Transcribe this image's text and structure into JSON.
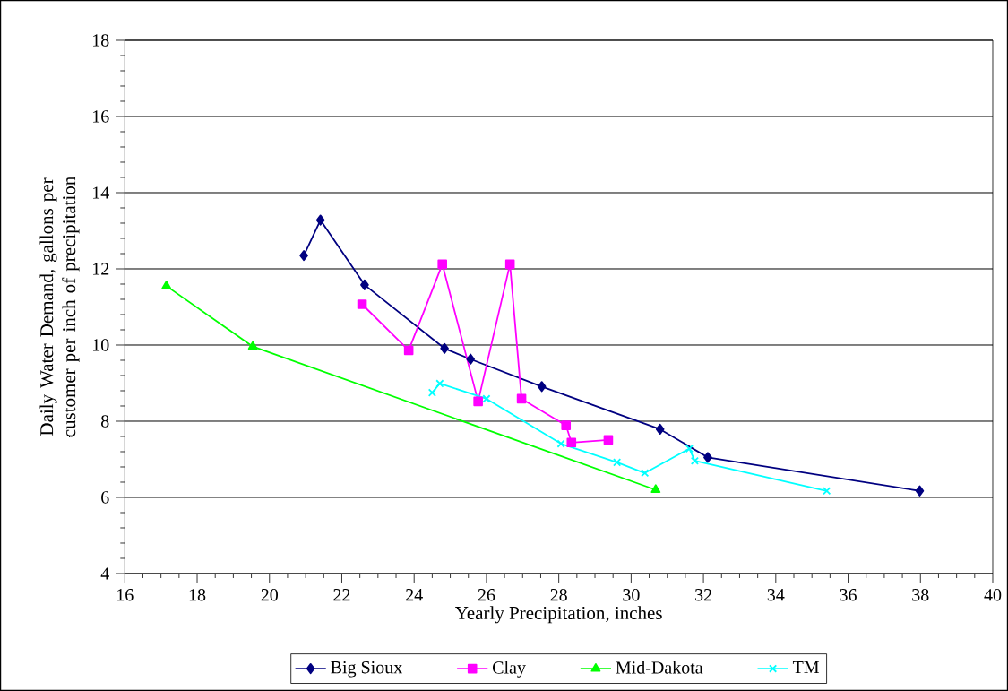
{
  "chart_data": {
    "type": "line",
    "xlabel": "Yearly Precipitation, inches",
    "ylabel": "Daily Water Demand, gallons per customer per inch of precipitation",
    "xlim": [
      16,
      40
    ],
    "ylim": [
      4,
      18
    ],
    "xticks": [
      16,
      18,
      20,
      22,
      24,
      26,
      28,
      30,
      32,
      34,
      36,
      38,
      40
    ],
    "yticks": [
      4,
      6,
      8,
      10,
      12,
      14,
      16,
      18
    ],
    "grid": "y",
    "legend": "bottom",
    "line_style": "solid",
    "series": [
      {
        "name": "Big Sioux",
        "color": "#000080",
        "marker": "diamond",
        "x": [
          20.95,
          21.41,
          22.63,
          24.84,
          25.56,
          27.53,
          30.8,
          32.12,
          37.98
        ],
        "values": [
          12.35,
          13.28,
          11.58,
          9.91,
          9.63,
          8.91,
          7.79,
          7.05,
          6.17
        ]
      },
      {
        "name": "Clay",
        "color": "#ff00ff",
        "marker": "square",
        "x": [
          22.56,
          23.85,
          24.78,
          25.77,
          26.65,
          26.97,
          28.2,
          28.35,
          29.37
        ],
        "values": [
          11.07,
          9.86,
          12.12,
          8.52,
          12.12,
          8.59,
          7.89,
          7.44,
          7.51
        ]
      },
      {
        "name": "Mid-Dakota",
        "color": "#00ff00",
        "marker": "triangle",
        "x": [
          17.15,
          19.54,
          30.68
        ],
        "values": [
          11.55,
          9.96,
          6.2
        ]
      },
      {
        "name": "TM",
        "color": "#00ffff",
        "marker": "cross",
        "x": [
          24.5,
          24.71,
          26.0,
          28.06,
          29.61,
          30.38,
          31.61,
          31.76,
          35.41
        ],
        "values": [
          8.75,
          8.99,
          8.59,
          7.41,
          6.92,
          6.64,
          7.28,
          6.96,
          6.17
        ]
      }
    ]
  }
}
